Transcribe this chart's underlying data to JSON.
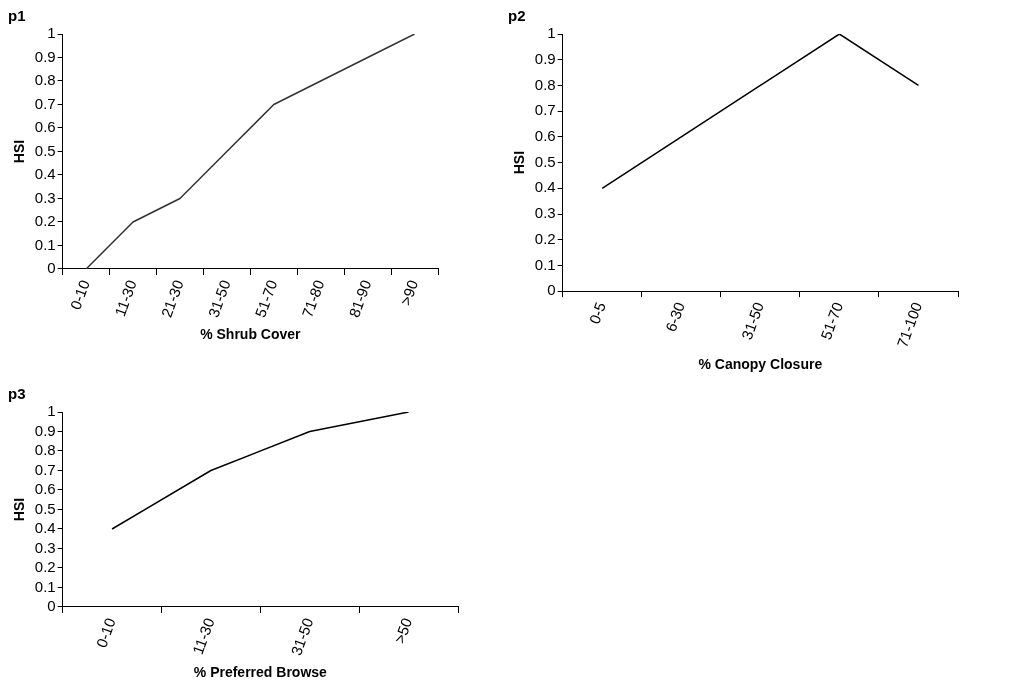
{
  "chart_data": [
    {
      "type": "line",
      "title": "p1",
      "xlabel": "% Shrub Cover",
      "ylabel": "HSI",
      "categories": [
        "0-10",
        "11-30",
        "21-30",
        "31-50",
        "51-70",
        "71-80",
        "81-90",
        ">90"
      ],
      "series": [
        {
          "color": "#333333",
          "values": [
            0,
            0.2,
            0.3,
            0.5,
            0.7,
            0.8,
            0.9,
            1
          ]
        }
      ],
      "ylim": [
        0,
        1
      ],
      "yticks": [
        0,
        0.1,
        0.2,
        0.3,
        0.4,
        0.5,
        0.6,
        0.7,
        0.8,
        0.9,
        1
      ],
      "grid": false,
      "legend": false,
      "marker": "none",
      "line_style": "solid"
    },
    {
      "type": "line",
      "title": "p2",
      "xlabel": "% Canopy Closure",
      "ylabel": "HSI",
      "categories": [
        "0-5",
        "6-30",
        "31-50",
        "51-70",
        "71-100"
      ],
      "series": [
        {
          "color": "#000000",
          "values": [
            0.4,
            0.6,
            0.8,
            1,
            0.8
          ]
        }
      ],
      "ylim": [
        0,
        1
      ],
      "yticks": [
        0,
        0.1,
        0.2,
        0.3,
        0.4,
        0.5,
        0.6,
        0.7,
        0.8,
        0.9,
        1
      ],
      "grid": false,
      "legend": false,
      "marker": "none",
      "line_style": "solid"
    },
    {
      "type": "line",
      "title": "p3",
      "xlabel": "% Preferred Browse",
      "ylabel": "HSI",
      "categories": [
        "0-10",
        "11-30",
        "31-50",
        ">50"
      ],
      "series": [
        {
          "color": "#000000",
          "values": [
            0.4,
            0.7,
            0.9,
            1
          ]
        }
      ],
      "ylim": [
        0,
        1
      ],
      "yticks": [
        0,
        0.1,
        0.2,
        0.3,
        0.4,
        0.5,
        0.6,
        0.7,
        0.8,
        0.9,
        1
      ],
      "grid": false,
      "legend": false,
      "marker": "none",
      "line_style": "solid"
    }
  ]
}
